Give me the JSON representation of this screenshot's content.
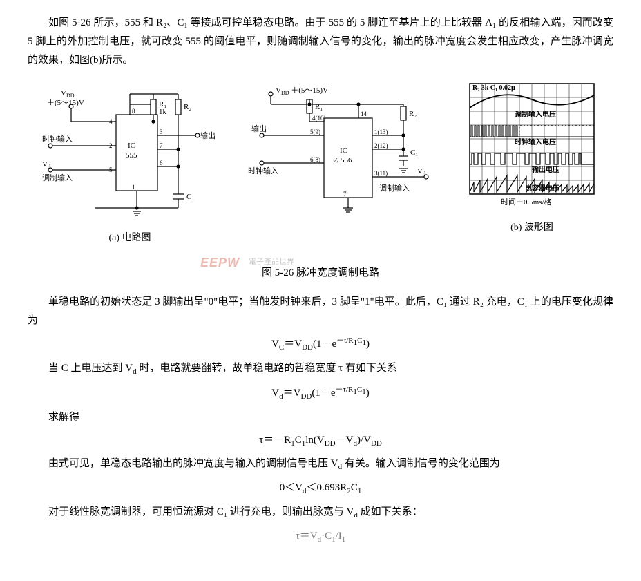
{
  "para1": "如图 5-26 所示，555 和 R₂、C₁ 等接成可控单稳态电路。由于 555 的 5 脚连至基片上的上比较器 A₁ 的反相输入端，因而改变 5 脚上的外加控制电压，就可改变 555 的阈值电平，则随调制输入信号的变化，输出的脉冲宽度会发生相应改变，产生脉冲调宽的效果，如图(b)所示。",
  "circuit_a": {
    "vdd_label": "V",
    "vdd_sub": "DD",
    "vdd_range": "＋(5～15)V",
    "r1_label": "R₁",
    "r1_val": "1k",
    "r2_label": "R₂",
    "ic_label1": "IC",
    "ic_label2": "555",
    "clock_in": "时钟输入",
    "vd_label": "V",
    "vd_sub": "d",
    "mod_in": "调制输入",
    "output": "输出",
    "c1_label": "C₁",
    "pins": {
      "p1": "1",
      "p2": "2",
      "p3": "3",
      "p4": "4",
      "p5": "5",
      "p6": "6",
      "p7": "7",
      "p8": "8"
    },
    "caption": "(a) 电路图"
  },
  "circuit_b": {
    "vdd_label": "V",
    "vdd_sub": "DD",
    "vdd_range": "＋(5～15)V",
    "r1_label": "R₁",
    "r2_label": "R₂",
    "ic_label1": "IC",
    "ic_label2": "½ 556",
    "output": "输出",
    "clock_in": "时钟输入",
    "mod_in": "调制输入",
    "c1_label": "C₁",
    "vd_label": "V",
    "vd_sub": "d",
    "pins": {
      "p4": "4(10)",
      "p14": "14",
      "p5": "5(9)",
      "p1": "1(13)",
      "p6": "6(8)",
      "p2": "2(12)",
      "p7": "7",
      "p3": "3(11)"
    }
  },
  "waveform": {
    "top_vals": "R₂ 3k   C₁ 0.02μ",
    "labels": [
      "调制输入电压",
      "时钟输入电压",
      "输出电压",
      "电容器电压"
    ],
    "x_label": "时间－0.5ms/格",
    "caption": "(b) 波形图"
  },
  "main_caption": "图 5-26  脉冲宽度调制电路",
  "watermark": "EEPW",
  "watermark_sub": "電子產品世界",
  "para2": "单稳电路的初始状态是 3 脚输出呈\"0\"电平；当触发时钟来后，3 脚呈\"1\"电平。此后，C₁ 通过 R₂ 充电，C₁ 上的电压变化规律为",
  "formula1_html": "V<sub>C</sub>＝V<sub>DD</sub>(1－e<sup>－t/R<sub>1</sub>C<sub>1</sub></sup>)",
  "para3": "当 C 上电压达到 V<sub>d</sub> 时，电路就要翻转，故单稳电路的暂稳宽度 τ 有如下关系",
  "formula2_html": "V<sub>d</sub>＝V<sub>DD</sub>(1－e<sup>－τ/R<sub>1</sub>C<sub>1</sub></sup>)",
  "para4": "求解得",
  "formula3_html": "τ＝－R<sub>1</sub>C<sub>1</sub>ln(V<sub>DD</sub>－V<sub>d</sub>)/V<sub>DD</sub>",
  "para5": "由式可见，单稳态电路输出的脉冲宽度与输入的调制信号电压 V<sub>d</sub> 有关。输入调制信号的变化范围为",
  "formula4_html": "0＜V<sub>d</sub>＜0.693R<sub>2</sub>C<sub>1</sub>",
  "para6": "对于线性脉宽调制器，可用恒流源对 C₁ 进行充电，则输出脉宽与 V<sub>d</sub> 成如下关系：",
  "formula5_html": "τ＝V<sub>d</sub>·C<sub>1</sub>/I<sub>1</sub>"
}
